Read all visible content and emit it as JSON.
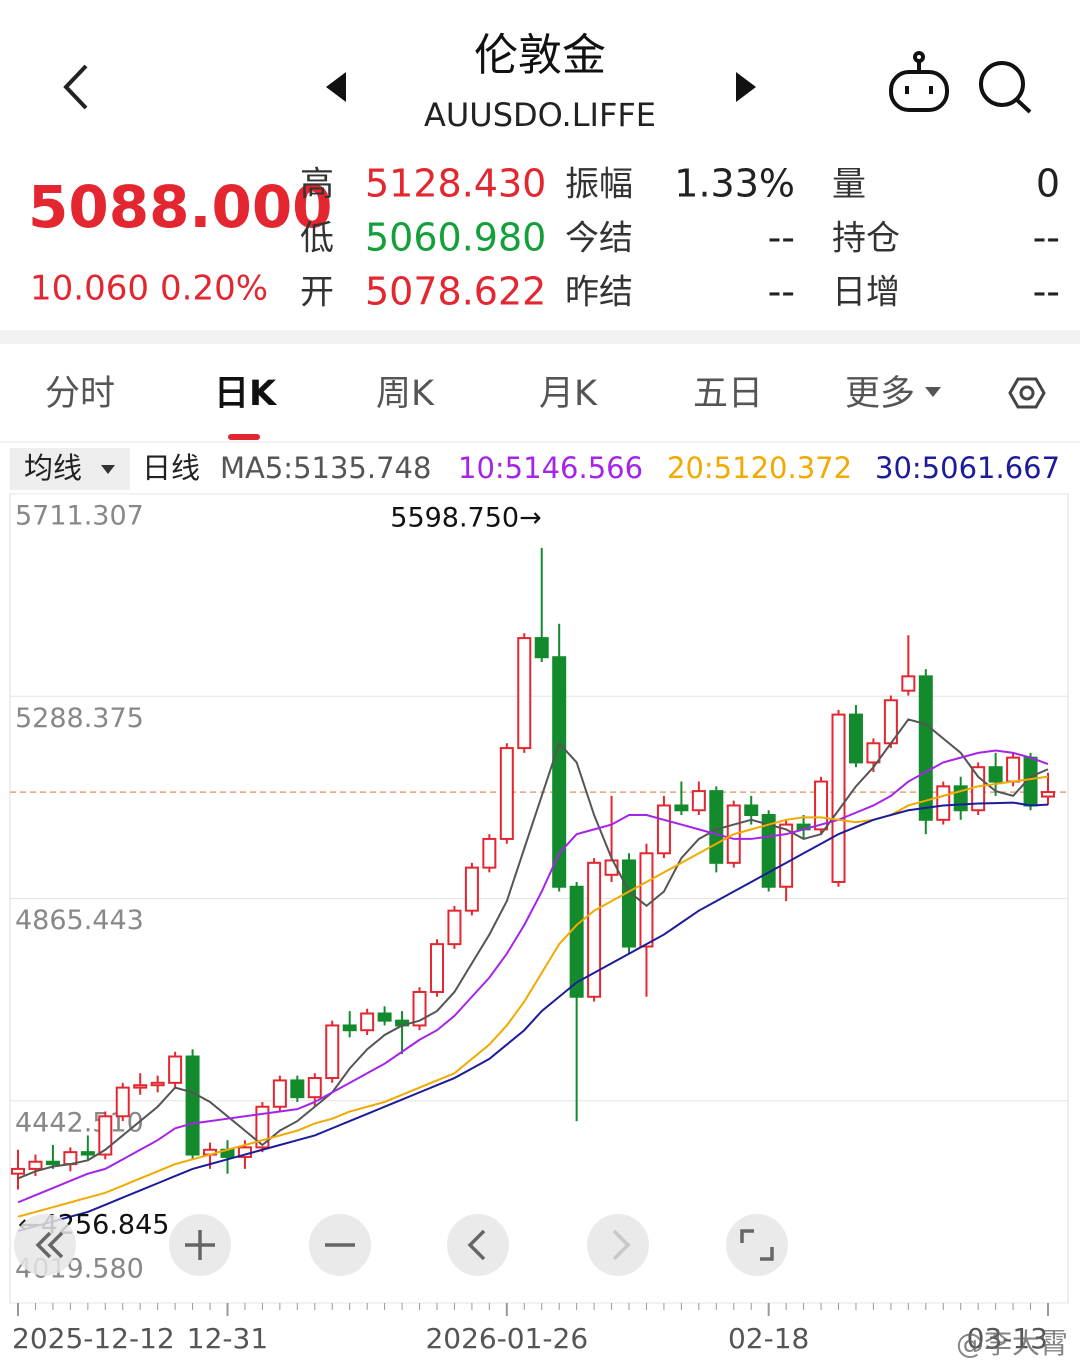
{
  "header": {
    "title": "伦敦金",
    "code": "AUUSDO.LIFFE"
  },
  "quote": {
    "price": "5088.000",
    "change": "10.060",
    "change_pct": "0.20%",
    "stats": [
      [
        "高",
        "5128.430"
      ],
      [
        "低",
        "5060.980"
      ],
      [
        "开",
        "5078.622"
      ],
      [
        "振幅",
        "1.33%"
      ],
      [
        "今结",
        "--"
      ],
      [
        "昨结",
        "--"
      ],
      [
        "量",
        "0"
      ],
      [
        "持仓",
        "--"
      ],
      [
        "日增",
        "--"
      ]
    ]
  },
  "tabs": [
    "分时",
    "日K",
    "周K",
    "月K",
    "五日",
    "更多"
  ],
  "indicator": {
    "selector": "均线",
    "period": "日线"
  },
  "watermark": "@李大霄",
  "chart_data": {
    "type": "candlestick",
    "categories": [
      "2025-12-12",
      null,
      null,
      null,
      null,
      null,
      null,
      null,
      null,
      null,
      null,
      null,
      "12-31",
      null,
      null,
      null,
      null,
      null,
      null,
      null,
      null,
      null,
      null,
      null,
      null,
      null,
      null,
      null,
      "2026-01-26",
      null,
      null,
      null,
      null,
      null,
      null,
      null,
      null,
      null,
      null,
      null,
      null,
      null,
      null,
      "02-18",
      null,
      null,
      null,
      null,
      null,
      null,
      null,
      null,
      null,
      null,
      null,
      null,
      null,
      null,
      null,
      "03-13"
    ],
    "open": [
      4290,
      4300,
      4315,
      4310,
      4335,
      4330,
      4410,
      4470,
      4475,
      4480,
      4535,
      4330,
      4340,
      4325,
      4345,
      4430,
      4485,
      4450,
      4490,
      4600,
      4590,
      4625,
      4610,
      4600,
      4670,
      4770,
      4840,
      4930,
      4990,
      5180,
      5410,
      5370,
      4890,
      4660,
      4915,
      4945,
      4765,
      4960,
      5060,
      5050,
      5090,
      4940,
      5060,
      5040,
      4890,
      5020,
      5010,
      4900,
      5250,
      5150,
      5190,
      5300,
      5330,
      5030,
      5100,
      5050,
      5140,
      5110,
      5160,
      5078.622
    ],
    "high": [
      4340,
      4330,
      4350,
      4345,
      4370,
      4420,
      4480,
      4500,
      4495,
      4545,
      4550,
      4355,
      4360,
      4360,
      4440,
      4495,
      4495,
      4500,
      4610,
      4630,
      4635,
      4640,
      4630,
      4680,
      4780,
      4850,
      4940,
      5000,
      5190,
      5420,
      5598.75,
      5440,
      4900,
      4950,
      5080,
      4960,
      4980,
      5080,
      5110,
      5110,
      5100,
      5070,
      5080,
      5050,
      5030,
      5040,
      5120,
      5260,
      5270,
      5200,
      5290,
      5416,
      5345,
      5110,
      5120,
      5150,
      5170,
      5170,
      5170,
      5128.43
    ],
    "low": [
      4256.845,
      4285,
      4300,
      4295,
      4320,
      4320,
      4400,
      4455,
      4460,
      4470,
      4320,
      4300,
      4290,
      4300,
      4335,
      4420,
      4440,
      4430,
      4480,
      4575,
      4580,
      4600,
      4540,
      4590,
      4660,
      4760,
      4830,
      4920,
      4980,
      5170,
      5360,
      4880,
      4400,
      4650,
      4900,
      4750,
      4660,
      4950,
      5040,
      5040,
      4920,
      4930,
      5020,
      4880,
      4860,
      4990,
      5000,
      4890,
      5140,
      5130,
      5180,
      5290,
      5000,
      5020,
      5030,
      5040,
      5080,
      5100,
      5050,
      5060.98
    ],
    "close": [
      4300,
      4315,
      4310,
      4335,
      4330,
      4410,
      4470,
      4475,
      4480,
      4535,
      4330,
      4340,
      4325,
      4345,
      4430,
      4485,
      4450,
      4490,
      4600,
      4590,
      4625,
      4610,
      4600,
      4670,
      4770,
      4840,
      4930,
      4990,
      5180,
      5410,
      5370,
      4890,
      4660,
      4940,
      4945,
      4765,
      4960,
      5060,
      5050,
      5090,
      4940,
      5060,
      5040,
      4890,
      5020,
      5010,
      5110,
      5250,
      5150,
      5190,
      5280,
      5330,
      5030,
      5100,
      5050,
      5140,
      5110,
      5160,
      5060,
      5088
    ],
    "up_color": "#e3262f",
    "down_color": "#138a2c",
    "series": [
      {
        "name": "MA5:5135.748",
        "color": "#555555",
        "values": [
          4280,
          4295,
          4305,
          4310,
          4318,
          4340,
          4370,
          4400,
          4430,
          4470,
          4460,
          4440,
          4410,
          4380,
          4350,
          4380,
          4400,
          4430,
          4460,
          4510,
          4550,
          4580,
          4600,
          4610,
          4630,
          4670,
          4730,
          4790,
          4860,
          4970,
          5080,
          5190,
          5150,
          5040,
          4950,
          4880,
          4850,
          4880,
          4950,
          4990,
          5010,
          5020,
          5030,
          5020,
          5010,
          4990,
          5000,
          5050,
          5100,
          5140,
          5190,
          5240,
          5230,
          5200,
          5170,
          5120,
          5090,
          5080,
          5120,
          5135.748
        ]
      },
      {
        "name": "10:5146.566",
        "color": "#a524e8",
        "values": [
          4230,
          4245,
          4260,
          4275,
          4290,
          4300,
          4320,
          4340,
          4360,
          4385,
          4395,
          4400,
          4405,
          4410,
          4415,
          4420,
          4425,
          4440,
          4460,
          4480,
          4500,
          4520,
          4545,
          4570,
          4590,
          4620,
          4660,
          4700,
          4750,
          4810,
          4880,
          4960,
          5000,
          5010,
          5020,
          5040,
          5040,
          5030,
          5020,
          5010,
          5000,
          4990,
          4990,
          4995,
          5000,
          5010,
          5020,
          5030,
          5045,
          5060,
          5080,
          5110,
          5130,
          5150,
          5160,
          5170,
          5175,
          5170,
          5160,
          5146.566
        ]
      },
      {
        "name": "20:5120.372",
        "color": "#f2a900",
        "values": [
          4200,
          4210,
          4220,
          4230,
          4240,
          4250,
          4265,
          4280,
          4295,
          4310,
          4320,
          4330,
          4340,
          4350,
          4360,
          4370,
          4380,
          4395,
          4405,
          4420,
          4430,
          4440,
          4455,
          4470,
          4485,
          4500,
          4530,
          4560,
          4600,
          4650,
          4710,
          4770,
          4810,
          4840,
          4860,
          4880,
          4900,
          4920,
          4940,
          4960,
          4980,
          5000,
          5010,
          5020,
          5030,
          5035,
          5035,
          5030,
          5025,
          5030,
          5040,
          5060,
          5070,
          5080,
          5090,
          5100,
          5105,
          5110,
          5115,
          5120.372
        ]
      },
      {
        "name": "30:5061.667",
        "color": "#1c1c9a",
        "values": [
          4170,
          4180,
          4190,
          4200,
          4210,
          4225,
          4240,
          4255,
          4270,
          4285,
          4300,
          4310,
          4320,
          4330,
          4340,
          4350,
          4360,
          4370,
          4385,
          4400,
          4415,
          4430,
          4445,
          4460,
          4475,
          4490,
          4510,
          4530,
          4560,
          4590,
          4630,
          4660,
          4690,
          4710,
          4730,
          4750,
          4770,
          4790,
          4815,
          4840,
          4860,
          4880,
          4900,
          4920,
          4940,
          4960,
          4980,
          5000,
          5015,
          5030,
          5040,
          5050,
          5055,
          5060,
          5062,
          5064,
          5065,
          5066,
          5060,
          5061.667
        ]
      }
    ],
    "price_line": 5088,
    "max_label": "5598.750→",
    "min_label": "←4256.845",
    "ylim": [
      4019.58,
      5711.307
    ],
    "yticks": [
      {
        "value": 4019.58,
        "label": "4019.580"
      },
      {
        "value": 4442.51,
        "label": "4442.510"
      },
      4865.443,
      5288.375,
      5711.307
    ],
    "grid": true
  }
}
